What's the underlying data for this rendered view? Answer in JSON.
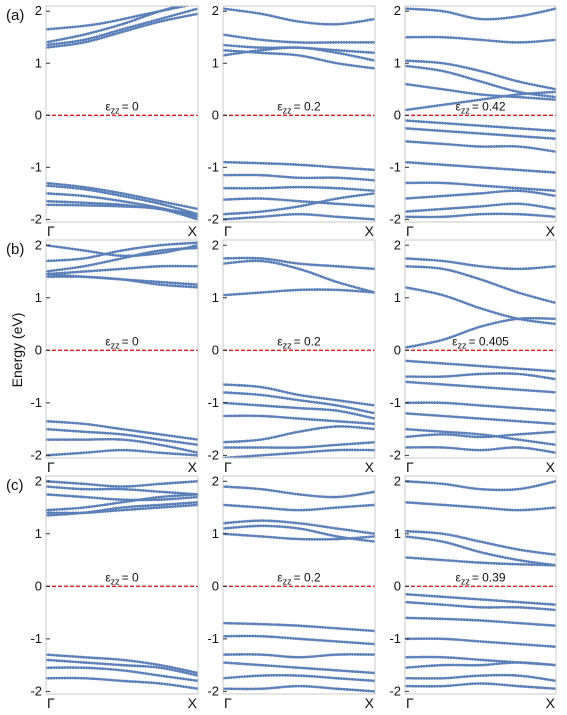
{
  "chart_data": {
    "type": "scatter",
    "ylabel": "Energy (eV)",
    "ylim": [
      -2.05,
      2.1
    ],
    "yticks": [
      "2",
      "1",
      "0",
      "-1",
      "-2"
    ],
    "ytick_values": [
      2,
      1,
      0,
      -1,
      -2
    ],
    "xlim": [
      0,
      1
    ],
    "xticks": [
      "Γ",
      "X"
    ],
    "fermi_level": 0,
    "colors": {
      "bands": "#5b7fb8",
      "fermi": "#d42020",
      "frame": "#c8c8c8"
    },
    "rows": [
      {
        "label": "(a)",
        "panels": [
          {
            "strain_prefix": "ε",
            "strain_sub": "zz",
            "strain_value": "= 0",
            "bands": [
              [
                1.65,
                1.75,
                1.95,
                2.15
              ],
              [
                1.35,
                1.45,
                1.65,
                1.85,
                2.05
              ],
              [
                1.3,
                1.4,
                1.6,
                1.8,
                1.95
              ],
              [
                1.4,
                1.55,
                1.75,
                2.0,
                2.2
              ],
              [
                -1.3,
                -1.38,
                -1.5,
                -1.65,
                -1.8
              ],
              [
                -1.35,
                -1.42,
                -1.55,
                -1.7,
                -1.9
              ],
              [
                -1.5,
                -1.55,
                -1.65,
                -1.78,
                -1.95
              ],
              [
                -1.65,
                -1.68,
                -1.72,
                -1.8,
                -1.9
              ],
              [
                -1.72,
                -1.73,
                -1.75,
                -1.8,
                -2.0
              ]
            ]
          },
          {
            "strain_prefix": "ε",
            "strain_sub": "zz",
            "strain_value": "= 0.2",
            "bands": [
              [
                2.05,
                1.95,
                1.8,
                1.75,
                1.85
              ],
              [
                1.55,
                1.45,
                1.4,
                1.4,
                1.4
              ],
              [
                1.35,
                1.3,
                1.3,
                1.25,
                1.2
              ],
              [
                1.15,
                1.25,
                1.3,
                1.2,
                1.05
              ],
              [
                1.25,
                1.2,
                1.15,
                1.0,
                0.9
              ],
              [
                -0.9,
                -0.92,
                -0.95,
                -1.0,
                -1.05
              ],
              [
                -1.15,
                -1.15,
                -1.2,
                -1.2,
                -1.25
              ],
              [
                -1.4,
                -1.4,
                -1.38,
                -1.4,
                -1.45
              ],
              [
                -1.62,
                -1.6,
                -1.65,
                -1.7,
                -1.75
              ],
              [
                -1.9,
                -1.85,
                -1.75,
                -1.6,
                -1.5
              ],
              [
                -2.0,
                -1.95,
                -1.9,
                -1.95,
                -2.0
              ]
            ]
          },
          {
            "strain_prefix": "ε",
            "strain_sub": "zz",
            "strain_value": "= 0.42",
            "bands": [
              [
                2.05,
                2.0,
                1.85,
                1.9,
                2.05
              ],
              [
                1.5,
                1.5,
                1.45,
                1.4,
                1.45
              ],
              [
                1.05,
                1.0,
                0.85,
                0.65,
                0.5
              ],
              [
                0.95,
                0.85,
                0.65,
                0.45,
                0.35
              ],
              [
                0.6,
                0.5,
                0.4,
                0.35,
                0.3
              ],
              [
                0.1,
                0.2,
                0.3,
                0.4,
                0.45
              ],
              [
                -0.1,
                -0.15,
                -0.2,
                -0.25,
                -0.3
              ],
              [
                -0.25,
                -0.3,
                -0.35,
                -0.4,
                -0.45
              ],
              [
                -0.5,
                -0.55,
                -0.6,
                -0.6,
                -0.7
              ],
              [
                -0.9,
                -0.95,
                -1.0,
                -1.05,
                -1.1
              ],
              [
                -1.3,
                -1.3,
                -1.35,
                -1.4,
                -1.45
              ],
              [
                -1.6,
                -1.55,
                -1.5,
                -1.45,
                -1.55
              ],
              [
                -1.85,
                -1.8,
                -1.75,
                -1.7,
                -1.8
              ],
              [
                -1.95,
                -1.95,
                -1.9,
                -1.9,
                -1.95
              ]
            ]
          }
        ]
      },
      {
        "label": "(b)",
        "panels": [
          {
            "strain_prefix": "ε",
            "strain_sub": "zz",
            "strain_value": "= 0",
            "bands": [
              [
                2.0,
                1.9,
                1.8,
                1.85,
                2.0
              ],
              [
                1.7,
                1.75,
                1.9,
                2.0,
                2.05
              ],
              [
                1.5,
                1.6,
                1.75,
                1.9,
                1.95
              ],
              [
                1.45,
                1.5,
                1.55,
                1.6,
                1.6
              ],
              [
                1.45,
                1.4,
                1.35,
                1.3,
                1.25
              ],
              [
                1.4,
                1.4,
                1.35,
                1.25,
                1.2
              ],
              [
                -1.35,
                -1.4,
                -1.5,
                -1.6,
                -1.7
              ],
              [
                -1.5,
                -1.55,
                -1.6,
                -1.7,
                -1.8
              ],
              [
                -1.7,
                -1.7,
                -1.7,
                -1.8,
                -1.95
              ],
              [
                -2.0,
                -1.95,
                -1.9,
                -1.95,
                -2.0
              ]
            ]
          },
          {
            "strain_prefix": "ε",
            "strain_sub": "zz",
            "strain_value": "= 0.2",
            "bands": [
              [
                1.75,
                1.75,
                1.65,
                1.6,
                1.55
              ],
              [
                1.65,
                1.7,
                1.55,
                1.3,
                1.1
              ],
              [
                1.05,
                1.1,
                1.15,
                1.15,
                1.1
              ],
              [
                -0.65,
                -0.7,
                -0.85,
                -0.95,
                -1.05
              ],
              [
                -0.8,
                -0.85,
                -0.95,
                -1.05,
                -1.2
              ],
              [
                -1.0,
                -1.05,
                -1.1,
                -1.15,
                -1.3
              ],
              [
                -1.25,
                -1.25,
                -1.3,
                -1.35,
                -1.4
              ],
              [
                -1.75,
                -1.7,
                -1.55,
                -1.45,
                -1.5
              ],
              [
                -1.85,
                -1.85,
                -1.85,
                -1.8,
                -1.75
              ],
              [
                -2.05,
                -2.0,
                -1.95,
                -1.9,
                -1.9
              ]
            ]
          },
          {
            "strain_prefix": "ε",
            "strain_sub": "zz",
            "strain_value": "= 0.405",
            "bands": [
              [
                1.75,
                1.7,
                1.6,
                1.55,
                1.6
              ],
              [
                1.6,
                1.55,
                1.35,
                1.1,
                0.9
              ],
              [
                1.2,
                1.05,
                0.8,
                0.6,
                0.5
              ],
              [
                0.05,
                0.2,
                0.45,
                0.6,
                0.6
              ],
              [
                -0.2,
                -0.25,
                -0.3,
                -0.35,
                -0.4
              ],
              [
                -0.5,
                -0.5,
                -0.45,
                -0.45,
                -0.55
              ],
              [
                -0.6,
                -0.65,
                -0.7,
                -0.75,
                -0.8
              ],
              [
                -1.0,
                -1.0,
                -1.05,
                -1.1,
                -1.15
              ],
              [
                -1.2,
                -1.25,
                -1.3,
                -1.35,
                -1.4
              ],
              [
                -1.5,
                -1.55,
                -1.6,
                -1.7,
                -1.8
              ],
              [
                -1.65,
                -1.6,
                -1.65,
                -1.6,
                -1.55
              ],
              [
                -1.85,
                -1.85,
                -1.9,
                -1.85,
                -1.95
              ]
            ]
          }
        ]
      },
      {
        "label": "(c)",
        "panels": [
          {
            "strain_prefix": "ε",
            "strain_sub": "zz",
            "strain_value": "= 0",
            "bands": [
              [
                2.0,
                1.95,
                1.9,
                1.95,
                2.0
              ],
              [
                1.9,
                1.85,
                1.85,
                1.8,
                1.75
              ],
              [
                1.75,
                1.7,
                1.65,
                1.65,
                1.7
              ],
              [
                1.45,
                1.5,
                1.6,
                1.7,
                1.75
              ],
              [
                1.4,
                1.4,
                1.45,
                1.5,
                1.55
              ],
              [
                1.35,
                1.4,
                1.5,
                1.55,
                1.6
              ],
              [
                -1.3,
                -1.35,
                -1.4,
                -1.5,
                -1.65
              ],
              [
                -1.4,
                -1.45,
                -1.5,
                -1.55,
                -1.7
              ],
              [
                -1.55,
                -1.55,
                -1.6,
                -1.7,
                -1.8
              ],
              [
                -1.75,
                -1.75,
                -1.8,
                -1.85,
                -1.95
              ]
            ]
          },
          {
            "strain_prefix": "ε",
            "strain_sub": "zz",
            "strain_value": "= 0.2",
            "bands": [
              [
                1.9,
                1.85,
                1.75,
                1.7,
                1.8
              ],
              [
                1.55,
                1.5,
                1.45,
                1.5,
                1.55
              ],
              [
                1.2,
                1.25,
                1.2,
                1.1,
                1.0
              ],
              [
                1.1,
                1.15,
                1.1,
                0.95,
                0.85
              ],
              [
                1.0,
                0.95,
                0.9,
                0.9,
                0.95
              ],
              [
                -0.7,
                -0.72,
                -0.75,
                -0.8,
                -0.85
              ],
              [
                -0.95,
                -0.95,
                -1.0,
                -1.05,
                -1.1
              ],
              [
                -1.3,
                -1.3,
                -1.35,
                -1.3,
                -1.3
              ],
              [
                -1.45,
                -1.5,
                -1.55,
                -1.6,
                -1.65
              ],
              [
                -1.75,
                -1.7,
                -1.7,
                -1.75,
                -1.8
              ],
              [
                -1.95,
                -1.95,
                -1.9,
                -1.95,
                -2.0
              ]
            ]
          },
          {
            "strain_prefix": "ε",
            "strain_sub": "zz",
            "strain_value": "= 0.39",
            "bands": [
              [
                2.0,
                1.95,
                1.85,
                1.85,
                2.0
              ],
              [
                1.6,
                1.55,
                1.5,
                1.45,
                1.5
              ],
              [
                1.05,
                1.0,
                0.85,
                0.7,
                0.6
              ],
              [
                0.95,
                0.85,
                0.65,
                0.5,
                0.4
              ],
              [
                0.55,
                0.5,
                0.45,
                0.42,
                0.4
              ],
              [
                -0.15,
                -0.2,
                -0.25,
                -0.3,
                -0.35
              ],
              [
                -0.3,
                -0.35,
                -0.4,
                -0.4,
                -0.45
              ],
              [
                -0.6,
                -0.62,
                -0.65,
                -0.7,
                -0.75
              ],
              [
                -1.0,
                -1.0,
                -1.05,
                -1.1,
                -1.15
              ],
              [
                -1.35,
                -1.35,
                -1.4,
                -1.45,
                -1.5
              ],
              [
                -1.55,
                -1.5,
                -1.5,
                -1.45,
                -1.5
              ],
              [
                -1.75,
                -1.75,
                -1.7,
                -1.7,
                -1.8
              ],
              [
                -1.9,
                -1.9,
                -1.85,
                -1.9,
                -1.95
              ]
            ]
          }
        ]
      }
    ]
  }
}
